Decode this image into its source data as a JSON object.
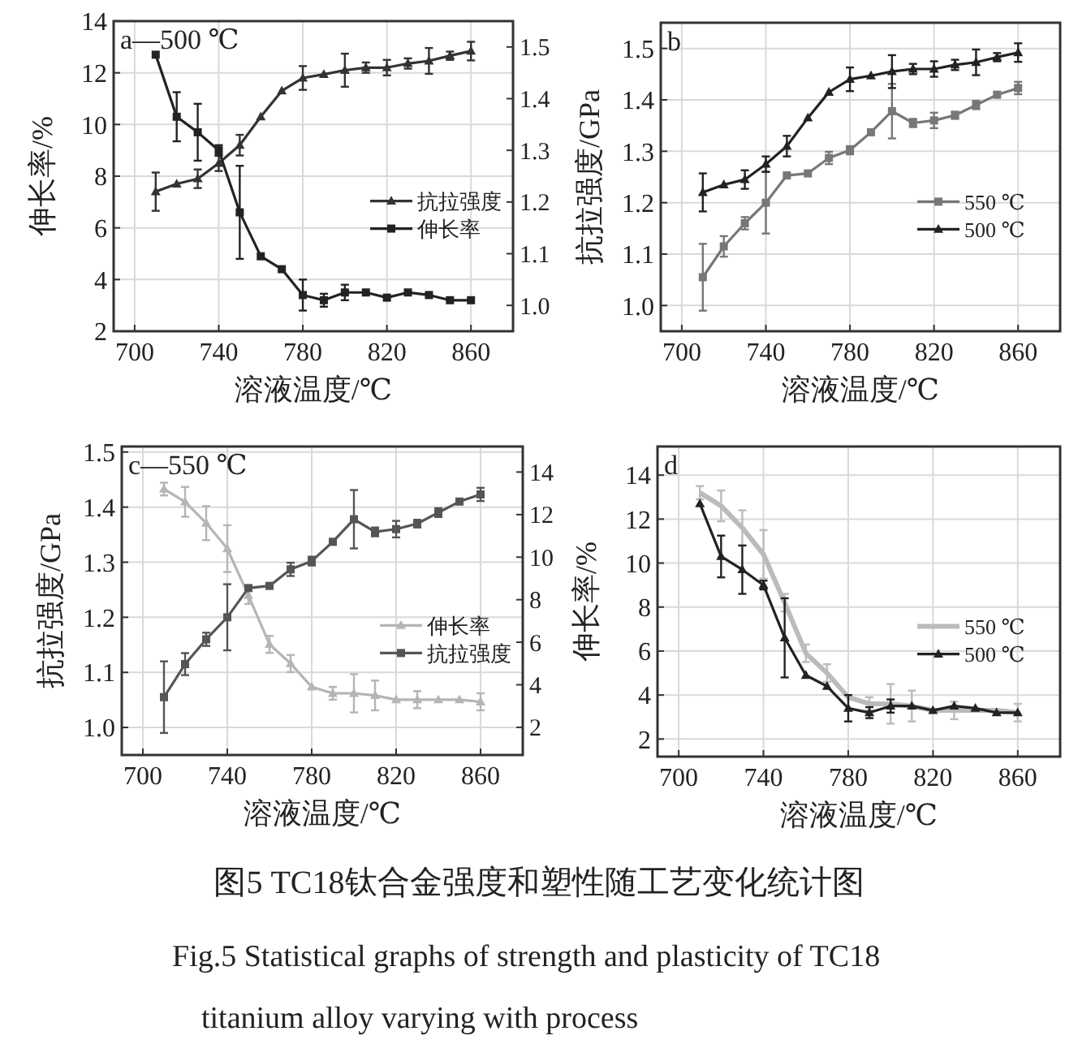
{
  "chart_data": [
    {
      "type": "line",
      "annotations": [
        "a—500 ℃"
      ],
      "xlabel": "溶液温度/℃",
      "ylabel": "伸长率/%",
      "x": [
        710,
        720,
        730,
        740,
        750,
        760,
        770,
        780,
        790,
        800,
        810,
        820,
        830,
        840,
        850,
        860
      ],
      "xlim": [
        690,
        880
      ],
      "xticks": [
        700,
        740,
        780,
        820,
        860
      ],
      "ylim": [
        2,
        14
      ],
      "yticks": [
        2,
        4,
        6,
        8,
        10,
        12,
        14
      ],
      "y2lim": [
        0.95,
        1.55
      ],
      "y2ticks": [
        {
          "value": 1,
          "label": "1.0"
        },
        1.1,
        1.2,
        1.3,
        1.4,
        1.5
      ],
      "grid": true,
      "legend": "right",
      "series": [
        {
          "name": "抗拉强度",
          "color": "#333333",
          "axis": "y2",
          "marker": "triangle",
          "values": [
            1.22,
            1.235,
            1.245,
            1.275,
            1.31,
            1.365,
            1.415,
            1.44,
            1.447,
            1.455,
            1.46,
            1.46,
            1.468,
            1.473,
            1.483,
            1.492
          ],
          "errors": [
            0.037,
            null,
            0.018,
            0.015,
            0.02,
            null,
            null,
            0.023,
            null,
            0.032,
            0.01,
            0.015,
            0.01,
            0.025,
            0.008,
            0.018
          ]
        },
        {
          "name": "伸长率",
          "color": "#222222",
          "marker": "square",
          "values": [
            12.7,
            10.3,
            9.7,
            9.0,
            6.6,
            4.9,
            4.4,
            3.4,
            3.2,
            3.5,
            3.5,
            3.3,
            3.5,
            3.4,
            3.2,
            3.2
          ],
          "errors": [
            null,
            0.95,
            1.1,
            0.2,
            1.8,
            null,
            null,
            0.6,
            0.25,
            0.3,
            null,
            null,
            null,
            null,
            null,
            null
          ]
        }
      ]
    },
    {
      "type": "line",
      "annotations": [
        "b"
      ],
      "xlabel": "溶液温度/℃",
      "ylabel": "抗拉强度/GPa",
      "x": [
        710,
        720,
        730,
        740,
        750,
        760,
        770,
        780,
        790,
        800,
        810,
        820,
        830,
        840,
        850,
        860
      ],
      "xlim": [
        690,
        880
      ],
      "xticks": [
        700,
        740,
        780,
        820,
        860
      ],
      "ylim": [
        0.95,
        1.55
      ],
      "yticks": [
        {
          "value": 1,
          "label": "1.0"
        },
        1.1,
        1.2,
        1.3,
        1.4,
        1.5
      ],
      "grid": true,
      "legend": "right",
      "series": [
        {
          "name": "550 ℃",
          "color": "#777777",
          "marker": "square",
          "values": [
            1.055,
            1.115,
            1.16,
            1.2,
            1.253,
            1.257,
            1.287,
            1.302,
            1.337,
            1.378,
            1.355,
            1.36,
            1.37,
            1.39,
            1.41,
            1.423
          ],
          "errors": [
            0.065,
            0.02,
            0.012,
            0.06,
            null,
            null,
            0.012,
            0.008,
            null,
            0.053,
            0.008,
            0.015,
            0.007,
            0.008,
            null,
            0.012
          ]
        },
        {
          "name": "500 ℃",
          "color": "#222222",
          "marker": "triangle",
          "values": [
            1.22,
            1.235,
            1.245,
            1.275,
            1.31,
            1.365,
            1.415,
            1.44,
            1.447,
            1.455,
            1.46,
            1.46,
            1.468,
            1.473,
            1.483,
            1.492
          ],
          "errors": [
            0.037,
            null,
            0.018,
            0.015,
            0.02,
            null,
            null,
            0.023,
            null,
            0.032,
            0.01,
            0.015,
            0.01,
            0.025,
            0.008,
            0.018
          ]
        }
      ]
    },
    {
      "type": "line",
      "annotations": [
        "c—550 ℃"
      ],
      "xlabel": "溶液温度/℃",
      "ylabel": "抗拉强度/GPa",
      "x": [
        710,
        720,
        730,
        740,
        750,
        760,
        770,
        780,
        790,
        800,
        810,
        820,
        830,
        840,
        850,
        860
      ],
      "xlim": [
        690,
        880
      ],
      "xticks": [
        700,
        740,
        780,
        820,
        860
      ],
      "ylim": [
        0.95,
        1.51
      ],
      "yticks": [
        {
          "value": 1,
          "label": "1.0"
        },
        1.1,
        1.2,
        1.3,
        1.4,
        1.5
      ],
      "y2lim": [
        0.7,
        15.2
      ],
      "y2ticks": [
        2,
        4,
        6,
        8,
        10,
        12,
        14
      ],
      "grid": true,
      "legend": "right",
      "series": [
        {
          "name": "伸长率",
          "color": "#b5b5b5",
          "axis": "y2",
          "marker": "triangle",
          "values": [
            13.2,
            12.6,
            11.6,
            10.4,
            8.2,
            5.9,
            5.0,
            3.9,
            3.6,
            3.6,
            3.5,
            3.3,
            3.3,
            3.3,
            3.3,
            3.2
          ],
          "errors": [
            0.3,
            0.7,
            0.8,
            1.1,
            0.4,
            0.4,
            0.4,
            null,
            0.3,
            0.9,
            0.7,
            null,
            0.4,
            null,
            null,
            0.4
          ]
        },
        {
          "name": "抗拉强度",
          "color": "#555555",
          "marker": "square",
          "values": [
            1.055,
            1.115,
            1.16,
            1.2,
            1.253,
            1.257,
            1.287,
            1.302,
            1.337,
            1.378,
            1.355,
            1.36,
            1.37,
            1.39,
            1.41,
            1.423
          ],
          "errors": [
            0.065,
            0.02,
            0.012,
            0.06,
            null,
            null,
            0.012,
            0.008,
            null,
            0.053,
            0.008,
            0.015,
            0.007,
            0.008,
            null,
            0.012
          ]
        }
      ]
    },
    {
      "type": "line",
      "annotations": [
        "d"
      ],
      "xlabel": "溶液温度/℃",
      "ylabel": "伸长率/%",
      "x": [
        710,
        720,
        730,
        740,
        750,
        760,
        770,
        780,
        790,
        800,
        810,
        820,
        830,
        840,
        850,
        860
      ],
      "xlim": [
        690,
        880
      ],
      "xticks": [
        700,
        740,
        780,
        820,
        860
      ],
      "ylim": [
        1.2,
        15.3
      ],
      "yticks": [
        2,
        4,
        6,
        8,
        10,
        12,
        14
      ],
      "grid": true,
      "legend": "right",
      "series": [
        {
          "name": "550 ℃",
          "color": "#bbbbbb",
          "marker": "none",
          "values": [
            13.2,
            12.6,
            11.6,
            10.4,
            8.2,
            5.9,
            5.0,
            3.9,
            3.6,
            3.6,
            3.5,
            3.3,
            3.3,
            3.3,
            3.3,
            3.2
          ],
          "errors": [
            0.3,
            0.7,
            0.8,
            1.1,
            0.4,
            0.4,
            0.4,
            null,
            0.3,
            0.9,
            0.7,
            null,
            0.4,
            null,
            null,
            0.4
          ]
        },
        {
          "name": "500 ℃",
          "color": "#222222",
          "marker": "triangle",
          "values": [
            12.7,
            10.3,
            9.7,
            9.0,
            6.6,
            4.9,
            4.4,
            3.4,
            3.2,
            3.5,
            3.5,
            3.3,
            3.5,
            3.4,
            3.2,
            3.2
          ],
          "errors": [
            null,
            0.95,
            1.1,
            0.2,
            1.8,
            null,
            null,
            0.6,
            0.25,
            0.3,
            null,
            null,
            null,
            null,
            null,
            null
          ]
        }
      ]
    },
    {
      "type": "other",
      "title": "图5 TC18钛合金强度和塑性随工艺变化统计图",
      "annotations": [
        "Fig.5  Statistical graphs of strength and plasticity of TC18",
        "titanium alloy varying with process"
      ]
    }
  ]
}
